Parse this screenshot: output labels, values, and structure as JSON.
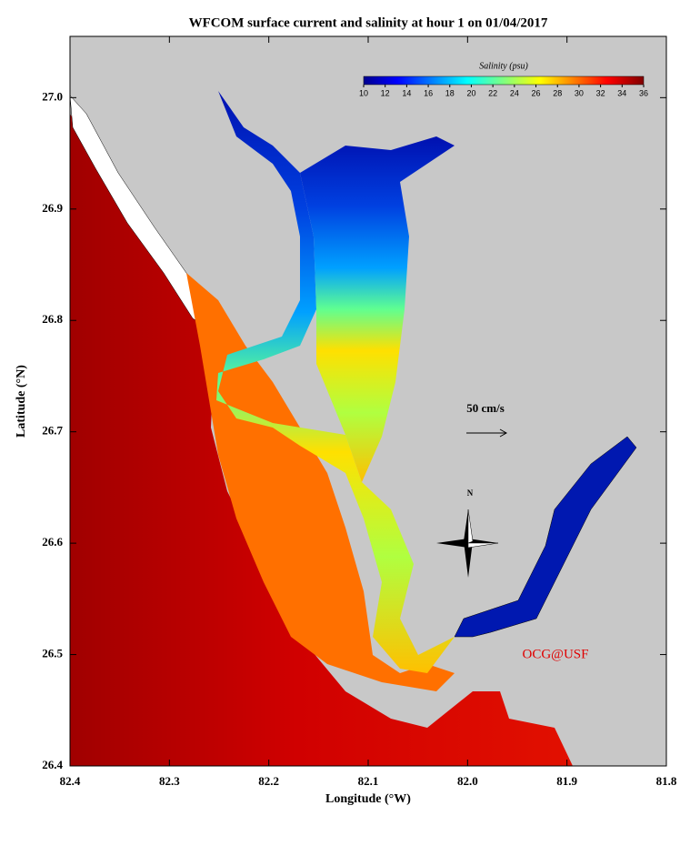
{
  "chart_data": {
    "type": "map",
    "title": "WFCOM surface current and salinity at hour 1 on 01/04/2017",
    "x_label": "Longitude (°W)",
    "y_label": "Latitude (°N)",
    "xlim": [
      82.4,
      81.8
    ],
    "ylim": [
      26.4,
      27.055
    ],
    "xticks": [
      82.4,
      82.3,
      82.2,
      82.1,
      {
        "value": 82,
        "label": "82.0"
      },
      81.9,
      81.8
    ],
    "yticks": [
      {
        "value": 26.4,
        "label": "26.4"
      },
      26.5,
      26.6,
      26.7,
      26.8,
      26.9,
      {
        "value": 27,
        "label": "27.0"
      }
    ],
    "colorbar": {
      "label": "Salinity (psu)",
      "lim": [
        10,
        36
      ],
      "ticks": [
        10,
        12,
        14,
        16,
        18,
        20,
        22,
        24,
        26,
        28,
        30,
        32,
        34,
        36
      ]
    },
    "scale_label": "50 cm/s",
    "north_label": "N",
    "credit": "OCG@USF"
  }
}
